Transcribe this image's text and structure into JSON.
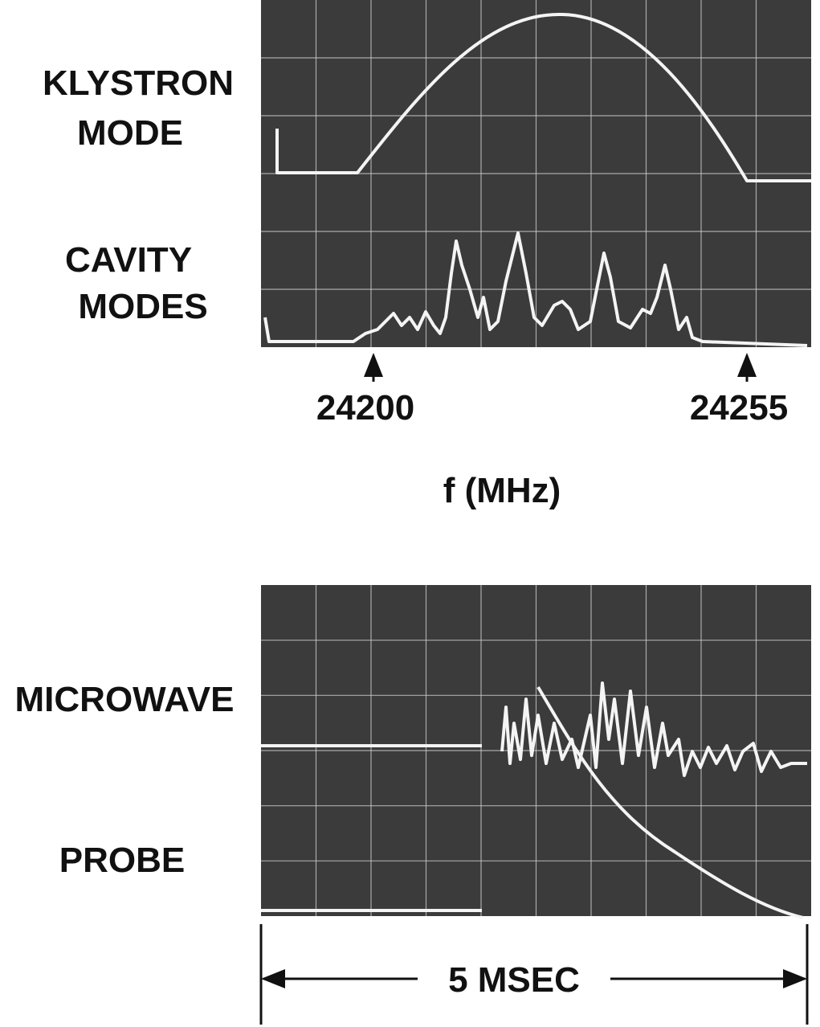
{
  "top_panel": {
    "labels": [
      "KLYSTRON",
      "MODE",
      "CAVITY",
      "MODES"
    ],
    "markers": [
      "24200",
      "24255"
    ],
    "axis_label": "f (MHz)"
  },
  "bottom_panel": {
    "labels": [
      "MICROWAVE",
      "PROBE"
    ],
    "scale_bar": "5 MSEC"
  }
}
